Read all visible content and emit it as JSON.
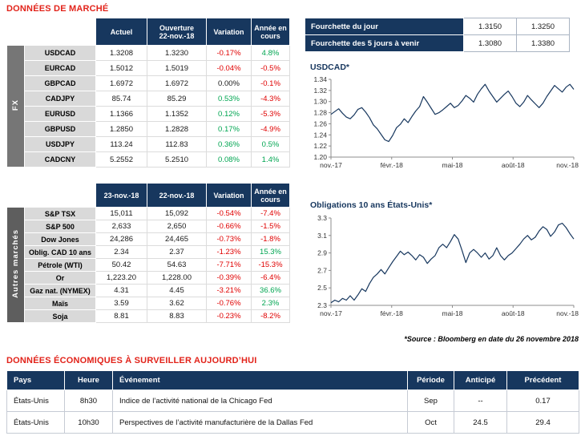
{
  "titles": {
    "market": "DONNÉES DE MARCHÉ",
    "econ": "DONNÉES ÉCONOMIQUES À SURVEILLER AUJOURD’HUI",
    "source": "*Source : Bloomberg en date du  26 novembre 2018"
  },
  "colors": {
    "navy": "#17375E",
    "title_red": "#E2231A",
    "pos": "#00A551",
    "neg": "#E00000"
  },
  "fx_table": {
    "group": "FX",
    "headers": [
      "Actuel",
      "Ouverture\n22-nov.-18",
      "Variation",
      "Année en\ncours"
    ],
    "rows": [
      [
        "USDCAD",
        "1.3208",
        "1.3230",
        "-0.17%",
        "4.8%"
      ],
      [
        "EURCAD",
        "1.5012",
        "1.5019",
        "-0.04%",
        "-0.5%"
      ],
      [
        "GBPCAD",
        "1.6972",
        "1.6972",
        "0.00%",
        "-0.1%"
      ],
      [
        "CADJPY",
        "85.74",
        "85.29",
        "0.53%",
        "-4.3%"
      ],
      [
        "EURUSD",
        "1.1366",
        "1.1352",
        "0.12%",
        "-5.3%"
      ],
      [
        "GBPUSD",
        "1.2850",
        "1.2828",
        "0.17%",
        "-4.9%"
      ],
      [
        "USDJPY",
        "113.24",
        "112.83",
        "0.36%",
        "0.5%"
      ],
      [
        "CADCNY",
        "5.2552",
        "5.2510",
        "0.08%",
        "1.4%"
      ]
    ]
  },
  "markets_table": {
    "group": "Autres marchés",
    "headers": [
      "23-nov.-18",
      "22-nov.-18",
      "Variation",
      "Année en\ncours"
    ],
    "rows": [
      [
        "S&P TSX",
        "15,011",
        "15,092",
        "-0.54%",
        "-7.4%"
      ],
      [
        "S&P 500",
        "2,633",
        "2,650",
        "-0.66%",
        "-1.5%"
      ],
      [
        "Dow Jones",
        "24,286",
        "24,465",
        "-0.73%",
        "-1.8%"
      ],
      [
        "Oblig. CAD 10 ans",
        "2.34",
        "2.37",
        "-1.23%",
        "15.3%"
      ],
      [
        "Pétrole (WTI)",
        "50.42",
        "54.63",
        "-7.71%",
        "-15.3%"
      ],
      [
        "Or",
        "1,223.20",
        "1,228.00",
        "-0.39%",
        "-6.4%"
      ],
      [
        "Gaz nat. (NYMEX)",
        "4.31",
        "4.45",
        "-3.21%",
        "36.6%"
      ],
      [
        "Maïs",
        "3.59",
        "3.62",
        "-0.76%",
        "2.3%"
      ],
      [
        "Soja",
        "8.81",
        "8.83",
        "-0.23%",
        "-8.2%"
      ]
    ]
  },
  "fourchette": {
    "rows": [
      {
        "label": "Fourchette du jour",
        "low": "1.3150",
        "high": "1.3250"
      },
      {
        "label": "Fourchette des 5 jours à venir",
        "low": "1.3080",
        "high": "1.3380"
      }
    ]
  },
  "chart_data": [
    {
      "type": "line",
      "title": "USDCAD*",
      "x_ticks": [
        "nov.-17",
        "févr.-18",
        "mai-18",
        "août-18",
        "nov.-18"
      ],
      "ylim": [
        1.2,
        1.34
      ],
      "y_ticks": [
        "1.20",
        "1.22",
        "1.24",
        "1.26",
        "1.28",
        "1.30",
        "1.32",
        "1.34"
      ],
      "values": [
        1.277,
        1.282,
        1.287,
        1.279,
        1.272,
        1.269,
        1.276,
        1.286,
        1.289,
        1.281,
        1.271,
        1.258,
        1.251,
        1.241,
        1.231,
        1.228,
        1.239,
        1.253,
        1.259,
        1.269,
        1.262,
        1.273,
        1.283,
        1.291,
        1.309,
        1.299,
        1.288,
        1.277,
        1.28,
        1.285,
        1.291,
        1.297,
        1.289,
        1.293,
        1.301,
        1.311,
        1.306,
        1.299,
        1.313,
        1.323,
        1.331,
        1.319,
        1.309,
        1.299,
        1.306,
        1.313,
        1.319,
        1.309,
        1.297,
        1.291,
        1.299,
        1.311,
        1.303,
        1.296,
        1.289,
        1.297,
        1.309,
        1.319,
        1.329,
        1.323,
        1.317,
        1.326,
        1.331,
        1.322
      ]
    },
    {
      "type": "line",
      "title": "Obligations 10 ans États-Unis*",
      "x_ticks": [
        "nov.-17",
        "févr.-18",
        "mai-18",
        "août-18",
        "nov.-18"
      ],
      "ylim": [
        2.3,
        3.3
      ],
      "y_ticks": [
        "2.3",
        "2.5",
        "2.7",
        "2.9",
        "3.1",
        "3.3"
      ],
      "values": [
        2.33,
        2.36,
        2.34,
        2.38,
        2.36,
        2.41,
        2.36,
        2.42,
        2.49,
        2.46,
        2.55,
        2.62,
        2.66,
        2.71,
        2.66,
        2.73,
        2.8,
        2.86,
        2.92,
        2.88,
        2.91,
        2.87,
        2.82,
        2.88,
        2.85,
        2.78,
        2.83,
        2.87,
        2.96,
        3.0,
        2.96,
        3.03,
        3.11,
        3.06,
        2.93,
        2.79,
        2.9,
        2.94,
        2.9,
        2.85,
        2.9,
        2.83,
        2.87,
        2.96,
        2.87,
        2.82,
        2.87,
        2.9,
        2.95,
        3.0,
        3.06,
        3.1,
        3.05,
        3.08,
        3.15,
        3.2,
        3.17,
        3.09,
        3.14,
        3.22,
        3.24,
        3.19,
        3.12,
        3.06
      ]
    }
  ],
  "econ_table": {
    "headers": [
      "Pays",
      "Heure",
      "Événement",
      "Période",
      "Anticipé",
      "Précédent"
    ],
    "rows": [
      [
        "États-Unis",
        "8h30",
        "Indice de l’activité national de la Chicago Fed",
        "Sep",
        "--",
        "0.17"
      ],
      [
        "États-Unis",
        "10h30",
        "Perspectives de l’activité manufacturière de la Dallas Fed",
        "Oct",
        "24.5",
        "29.4"
      ]
    ]
  }
}
